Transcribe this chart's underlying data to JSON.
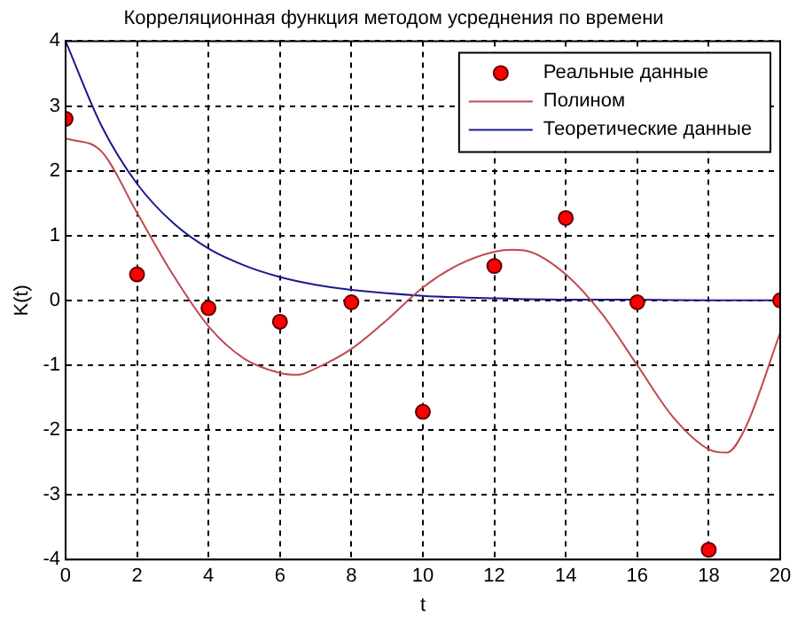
{
  "chart_data": {
    "type": "line",
    "title": "Корреляционная функция методом усреднения по времени",
    "xlabel": "t",
    "ylabel": "K(t)",
    "xlim": [
      0,
      20
    ],
    "xticks": [
      0,
      2,
      4,
      6,
      8,
      10,
      12,
      14,
      16,
      18,
      20
    ],
    "ylim": [
      -4,
      4
    ],
    "yticks": [
      -4,
      -3,
      -2,
      -1,
      0,
      1,
      2,
      3,
      4
    ],
    "grid": true,
    "legend": "top right",
    "series": [
      {
        "name": "Реальные данные",
        "type": "scatter",
        "marker": "circle",
        "color": "#ff0000",
        "x": [
          0,
          2,
          4,
          6,
          8,
          10,
          12,
          14,
          16,
          18,
          20
        ],
        "values": [
          2.8,
          0.4,
          -0.12,
          -0.33,
          -0.03,
          -1.72,
          0.53,
          1.27,
          -0.03,
          -3.85,
          0
        ]
      },
      {
        "name": "Полином",
        "type": "line",
        "color": "#c04850",
        "x": [
          0,
          1,
          2,
          3,
          4,
          5,
          6,
          6.5,
          7,
          8,
          9,
          10,
          11,
          12,
          12.5,
          13,
          14,
          15,
          16,
          17,
          18,
          18.5,
          19,
          20
        ],
        "values": [
          2.5,
          2.3,
          1.35,
          0.4,
          -0.4,
          -0.9,
          -1.12,
          -1.15,
          -1.05,
          -0.75,
          -0.3,
          0.2,
          0.55,
          0.75,
          0.78,
          0.75,
          0.4,
          -0.2,
          -1.0,
          -1.8,
          -2.3,
          -2.35,
          -2.0,
          -0.5
        ]
      },
      {
        "name": "Теоретические данные",
        "type": "line",
        "color": "#1a1a8c",
        "x": [
          0,
          1,
          2,
          3,
          4,
          5,
          6,
          7,
          8,
          10,
          12,
          14,
          16,
          18,
          20
        ],
        "values": [
          4,
          2.7,
          1.8,
          1.2,
          0.8,
          0.54,
          0.36,
          0.24,
          0.16,
          0.07,
          0.03,
          0.01,
          0.01,
          0,
          0
        ]
      }
    ]
  }
}
